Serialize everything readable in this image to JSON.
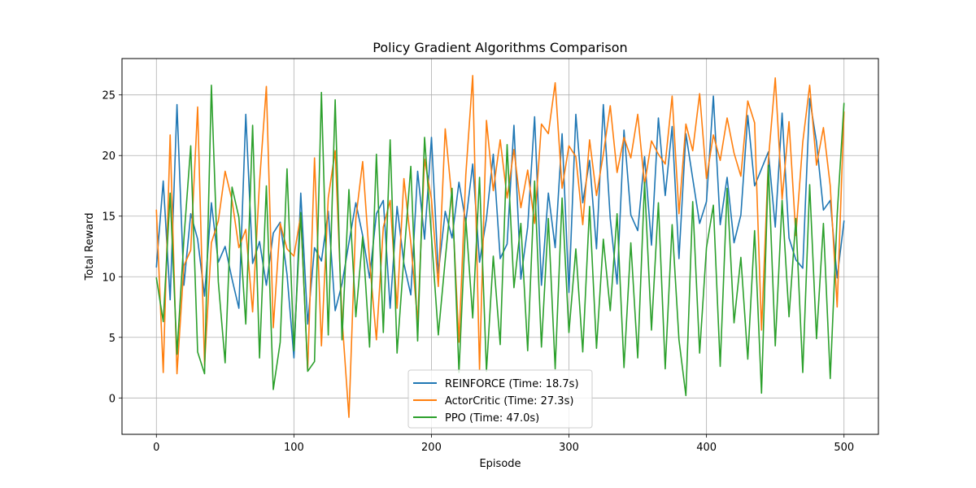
{
  "chart_data": {
    "type": "line",
    "title": "Policy Gradient Algorithms Comparison",
    "xlabel": "Episode",
    "ylabel": "Total Reward",
    "xlim": [
      -25,
      525
    ],
    "ylim": [
      -3,
      28
    ],
    "xticks": [
      0,
      100,
      200,
      300,
      400,
      500
    ],
    "yticks": [
      0,
      5,
      10,
      15,
      20,
      25
    ],
    "grid": true,
    "legend_position": "lower-center",
    "x_start": 0,
    "x_step": 5,
    "series": [
      {
        "name": "REINFORCE (Time: 18.7s)",
        "color": "#1f77b4",
        "values": [
          10.8,
          17.9,
          8.1,
          24.2,
          9.3,
          15.2,
          13.1,
          8.4,
          16.1,
          11.2,
          12.5,
          9.8,
          7.4,
          23.4,
          11.1,
          12.9,
          9.3,
          13.6,
          14.5,
          10.2,
          3.3,
          16.9,
          6.1,
          12.4,
          11.3,
          15.4,
          7.2,
          9.4,
          12.8,
          16.1,
          13.4,
          9.9,
          15.2,
          16.3,
          7.4,
          15.8,
          11.1,
          8.5,
          18.7,
          13.1,
          21.5,
          10.3,
          15.4,
          13.2,
          17.8,
          14.5,
          19.3,
          11.2,
          14.8,
          20.1,
          11.5,
          12.7,
          22.5,
          9.8,
          14.1,
          23.2,
          9.3,
          16.9,
          12.4,
          21.8,
          8.7,
          23.4,
          16.1,
          19.6,
          12.3,
          24.2,
          14.8,
          9.4,
          22.1,
          15.1,
          13.8,
          19.9,
          12.6,
          23.1,
          16.7,
          22.4,
          11.5,
          21.8,
          18.1,
          14.4,
          16.2,
          24.9,
          14.3,
          18.2,
          12.8,
          15.1,
          23.3,
          17.5,
          18.9,
          20.3,
          14.1,
          23.5,
          13.2,
          11.4,
          10.7,
          24.7,
          21.1,
          15.5,
          16.3,
          9.9,
          14.6
        ]
      },
      {
        "name": "ActorCritic (Time: 27.3s)",
        "color": "#ff7f0e",
        "values": [
          15.5,
          2.1,
          21.7,
          2.0,
          10.9,
          12.2,
          24.0,
          2.7,
          12.8,
          14.6,
          18.7,
          16.3,
          12.4,
          13.9,
          7.1,
          17.8,
          25.7,
          5.8,
          14.4,
          12.3,
          11.7,
          15.1,
          2.3,
          19.8,
          4.3,
          16.5,
          20.4,
          6.6,
          -1.6,
          14.8,
          19.5,
          11.3,
          4.8,
          14.1,
          16.3,
          7.4,
          18.1,
          12.8,
          6.3,
          19.7,
          16.4,
          9.2,
          22.2,
          16.3,
          4.6,
          18.4,
          26.6,
          2.3,
          22.9,
          17.1,
          21.3,
          16.5,
          20.5,
          15.7,
          18.8,
          14.4,
          22.6,
          21.8,
          26.0,
          17.3,
          20.8,
          19.9,
          14.3,
          21.3,
          16.7,
          20.1,
          24.1,
          18.6,
          21.5,
          19.8,
          23.4,
          17.6,
          21.2,
          20.1,
          19.3,
          24.9,
          15.2,
          22.6,
          20.4,
          25.1,
          18.1,
          21.7,
          19.6,
          23.1,
          20.2,
          18.3,
          24.5,
          22.7,
          5.6,
          19.6,
          26.4,
          16.4,
          22.8,
          13.4,
          21.1,
          25.8,
          19.2,
          22.3,
          17.5,
          7.5,
          23.6
        ]
      },
      {
        "name": "PPO (Time: 47.0s)",
        "color": "#2ca02c",
        "values": [
          9.9,
          6.3,
          16.9,
          3.6,
          13.1,
          20.8,
          3.8,
          2.0,
          25.8,
          9.6,
          2.9,
          17.4,
          14.9,
          6.1,
          22.5,
          3.3,
          17.5,
          0.7,
          4.6,
          18.9,
          3.9,
          15.3,
          2.2,
          3.0,
          25.2,
          5.2,
          24.6,
          4.8,
          17.2,
          6.7,
          13.3,
          4.2,
          20.1,
          5.4,
          21.3,
          3.7,
          11.6,
          19.1,
          4.7,
          21.5,
          13.3,
          5.2,
          11.4,
          17.3,
          2.1,
          14.8,
          6.6,
          18.2,
          2.2,
          11.7,
          4.4,
          20.9,
          9.1,
          14.4,
          3.9,
          17.9,
          4.2,
          14.8,
          2.4,
          16.5,
          5.4,
          12.3,
          3.8,
          15.8,
          4.1,
          13.1,
          7.2,
          15.2,
          2.5,
          12.8,
          3.3,
          17.8,
          5.6,
          16.1,
          2.4,
          14.3,
          4.8,
          0.2,
          16.2,
          3.7,
          12.4,
          15.9,
          2.6,
          17.3,
          6.2,
          11.6,
          3.2,
          13.8,
          0.4,
          19.2,
          4.3,
          16.3,
          6.7,
          14.8,
          2.1,
          17.6,
          4.9,
          14.4,
          1.6,
          15.1,
          24.3
        ]
      }
    ]
  }
}
